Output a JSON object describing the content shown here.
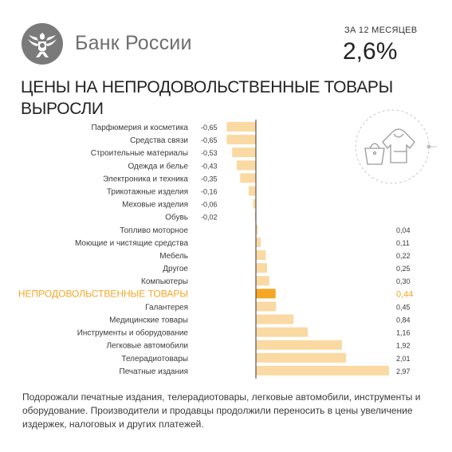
{
  "header": {
    "bank_name": "Банк России",
    "period_label": "ЗА 12 МЕСЯЦЕВ",
    "headline_value": "2,6%"
  },
  "title_lines": [
    "ЦЕНЫ НА НЕПРОДОВОЛЬСТВЕННЫЕ ТОВАРЫ",
    "ВЫРОСЛИ"
  ],
  "footnote": "Подорожали печатные издания, телерадиотовары, легковые автомобили, инструменты и оборудование. Производители и продавцы продолжили переносить в цены увеличение издержек, налоговых и других платежей.",
  "icons": {
    "logo": "double-headed-eagle-icon",
    "illustration": "handbag-and-hoodie-icon"
  },
  "colors": {
    "bar": "#fad9a2",
    "highlight_bar": "#f5a623",
    "highlight_text": "#f5a623",
    "axis": "#333333",
    "text": "#3a3a3a"
  },
  "chart_data": {
    "type": "bar",
    "orientation": "horizontal",
    "highlight_index": 13,
    "categories": [
      "Парфюмерия и косметика",
      "Средства связи",
      "Строительные материалы",
      "Одежда и белье",
      "Электроника и техника",
      "Трикотажные изделия",
      "Меховые изделия",
      "Обувь",
      "Топливо моторное",
      "Моющие и чистящие средства",
      "Мебель",
      "Другое",
      "Компьютеры",
      "НЕПРОДОВОЛЬСТВЕННЫЕ ТОВАРЫ",
      "Галантерея",
      "Медицинские товары",
      "Инструменты и оборудование",
      "Легковые автомобили",
      "Телерадиотовары",
      "Печатные издания"
    ],
    "values": [
      -0.65,
      -0.65,
      -0.53,
      -0.43,
      -0.35,
      -0.16,
      -0.06,
      -0.02,
      0.04,
      0.11,
      0.22,
      0.25,
      0.3,
      0.44,
      0.45,
      0.84,
      1.16,
      1.92,
      2.01,
      2.97
    ],
    "value_labels": [
      "-0,65",
      "-0,65",
      "-0,53",
      "-0,43",
      "-0,35",
      "-0,16",
      "-0,06",
      "-0,02",
      "0,04",
      "0,11",
      "0,22",
      "0,25",
      "0,30",
      "0,44",
      "0,45",
      "0,84",
      "1,16",
      "1,92",
      "2,01",
      "2,97"
    ],
    "xlim": [
      -0.65,
      2.97
    ],
    "grid": false
  }
}
